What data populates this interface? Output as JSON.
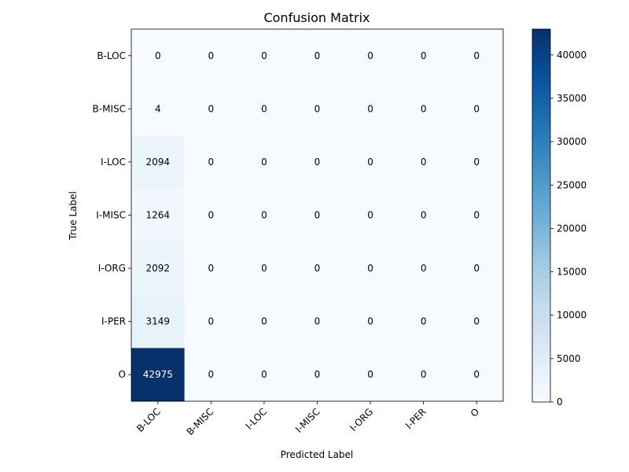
{
  "chart_data": {
    "type": "heatmap",
    "title": "Confusion Matrix",
    "xlabel": "Predicted Label",
    "ylabel": "True Label",
    "x_categories": [
      "B-LOC",
      "B-MISC",
      "I-LOC",
      "I-MISC",
      "I-ORG",
      "I-PER",
      "O"
    ],
    "y_categories": [
      "B-LOC",
      "B-MISC",
      "I-LOC",
      "I-MISC",
      "I-ORG",
      "I-PER",
      "O"
    ],
    "values": [
      [
        0,
        0,
        0,
        0,
        0,
        0,
        0
      ],
      [
        4,
        0,
        0,
        0,
        0,
        0,
        0
      ],
      [
        2094,
        0,
        0,
        0,
        0,
        0,
        0
      ],
      [
        1264,
        0,
        0,
        0,
        0,
        0,
        0
      ],
      [
        2092,
        0,
        0,
        0,
        0,
        0,
        0
      ],
      [
        3149,
        0,
        0,
        0,
        0,
        0,
        0
      ],
      [
        42975,
        0,
        0,
        0,
        0,
        0,
        0
      ]
    ],
    "colormap": "Blues",
    "colorbar": {
      "range": [
        0,
        42975
      ],
      "ticks": [
        0,
        5000,
        10000,
        15000,
        20000,
        25000,
        30000,
        35000,
        40000
      ]
    },
    "grid": false
  }
}
